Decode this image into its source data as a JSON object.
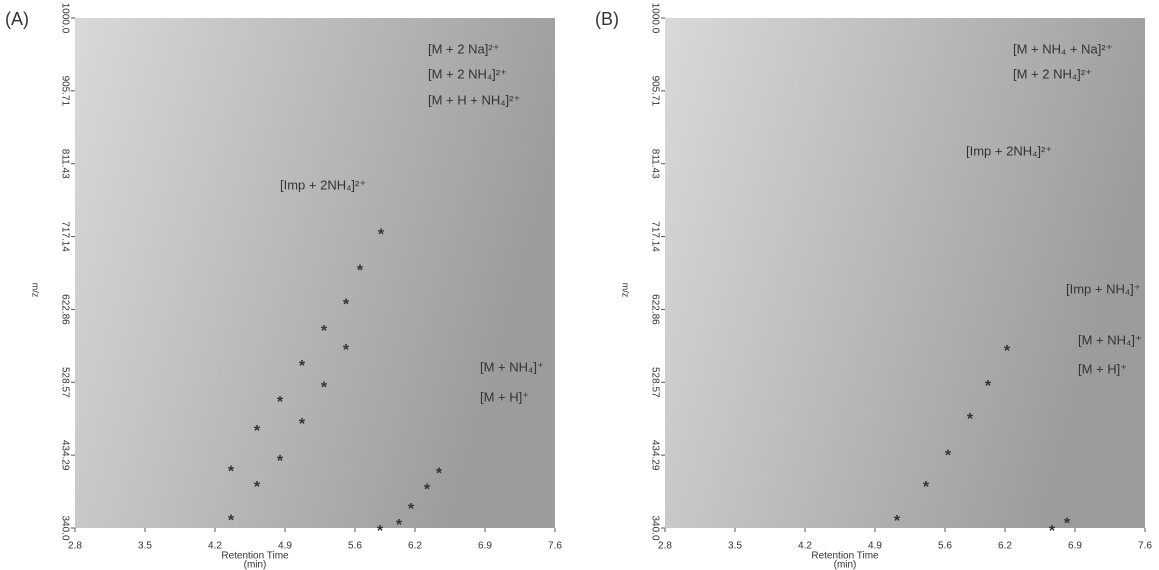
{
  "chart_data": [
    {
      "type": "scatter",
      "panel": "(A)",
      "xlabel": "Retention Time",
      "xunit": "(min)",
      "ylabel": "m/z",
      "xlim": [
        2.8,
        7.6
      ],
      "xticks": [
        2.8,
        3.5,
        4.2,
        4.9,
        5.6,
        6.2,
        6.9,
        7.6
      ],
      "ylim": [
        340,
        1000
      ],
      "yticks": [
        {
          "value": 340,
          "label": "340.0"
        },
        {
          "value": 434.29,
          "label": "434.29"
        },
        {
          "value": 528.57,
          "label": "528.57"
        },
        {
          "value": 622.86,
          "label": "622.86"
        },
        {
          "value": 717.14,
          "label": "717.14"
        },
        {
          "value": 811.43,
          "label": "811.43"
        },
        {
          "value": 905.71,
          "label": "905.71"
        },
        {
          "value": 1000,
          "label": "1000.0"
        }
      ],
      "marker": "*",
      "annotations": [
        {
          "text": "[M + 2 Na]²⁺",
          "color": "#e07b28"
        },
        {
          "text": "[M + 2 NH₄]²⁺",
          "color": "#1f2a6e"
        },
        {
          "text": "[M + H + NH₄]²⁺",
          "color": "#5a9a3a"
        },
        {
          "text": "[Imp + 2NH₄]²⁺",
          "color": "#7b3fa0"
        },
        {
          "text": "[M + NH₄]⁺",
          "color": "#1f2a6e"
        },
        {
          "text": "[M + H]⁺",
          "color": "#ff2a2a"
        }
      ],
      "series": [
        {
          "color": "#e07b28",
          "x": [
            4.36,
            4.62,
            4.85,
            5.07,
            5.29,
            5.51,
            5.65,
            5.86
          ],
          "values": [
            417.6,
            469.4,
            507,
            553.5,
            598.8,
            633.7,
            677.7,
            724.3
          ]
        },
        {
          "color": "#5a9a3a",
          "x": [
            4.36,
            4.62,
            4.85,
            5.07,
            5.29,
            5.51
          ],
          "values": [
            354,
            397,
            430.6,
            478.5,
            526.3,
            574.2
          ]
        },
        {
          "color": "#ff2a2a",
          "x": [
            5.85,
            6.04,
            6.16,
            6.32,
            6.44
          ],
          "values": [
            340,
            347.8,
            368.5,
            394.3,
            415
          ]
        }
      ]
    },
    {
      "type": "scatter",
      "panel": "(B)",
      "xlabel": "Retention Time",
      "xunit": "(min)",
      "ylabel": "m/z",
      "xlim": [
        2.8,
        7.6
      ],
      "xticks": [
        2.8,
        3.5,
        4.2,
        4.9,
        5.6,
        6.2,
        6.9,
        7.6
      ],
      "ylim": [
        340,
        1000
      ],
      "yticks": [
        {
          "value": 340,
          "label": "340.0"
        },
        {
          "value": 434.29,
          "label": "434.29"
        },
        {
          "value": 528.57,
          "label": "528.57"
        },
        {
          "value": 622.86,
          "label": "622.86"
        },
        {
          "value": 717.14,
          "label": "717.14"
        },
        {
          "value": 811.43,
          "label": "811.43"
        },
        {
          "value": 905.71,
          "label": "905.71"
        },
        {
          "value": 1000,
          "label": "1000.0"
        }
      ],
      "marker": "*",
      "annotations": [
        {
          "text": "[M + NH₄ + Na]²⁺",
          "color": "#f2c14e"
        },
        {
          "text": "[M + 2 NH₄]²⁺",
          "color": "#1f2a6e"
        },
        {
          "text": "[Imp + 2NH₄]²⁺",
          "color": "#7b3fa0"
        },
        {
          "text": "[Imp + NH₄]⁺",
          "color": "#7b3fa0"
        },
        {
          "text": "[M + NH₄]⁺",
          "color": "#1f2a6e"
        },
        {
          "text": "[M + H]⁺",
          "color": "#ff2a2a"
        }
      ],
      "series": [
        {
          "color": "#f2c14e",
          "x": [
            5.12,
            5.41,
            5.63,
            5.85,
            6.03,
            6.22
          ],
          "values": [
            353,
            397,
            438,
            485,
            528,
            573
          ]
        },
        {
          "color": "#ff2a2a",
          "x": [
            6.67,
            6.82
          ],
          "values": [
            340,
            350
          ]
        }
      ]
    }
  ]
}
